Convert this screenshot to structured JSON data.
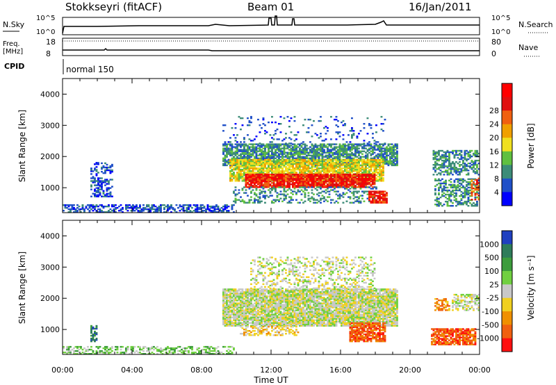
{
  "header": {
    "station": "Stokkseyri (fitACF)",
    "beam": "Beam 01",
    "date": "16/Jan/2011"
  },
  "noise_panel": {
    "left_label": "N.Sky",
    "right_label": "N.Search",
    "left_ticks": [
      "10^5",
      "10^0"
    ],
    "right_ticks": [
      "10^5",
      "10^0"
    ]
  },
  "freq_panel": {
    "left_label_1": "Freq.",
    "left_label_2": "[MHz]",
    "right_label": "Nave",
    "left_ticks": [
      "18",
      "8"
    ],
    "right_ticks": [
      "80",
      "0"
    ]
  },
  "cpid": {
    "label": "CPID",
    "mode": "normal 150"
  },
  "chart_data": [
    {
      "type": "heatmap",
      "name": "power",
      "ylabel": "Slant Range [km]",
      "ylim": [
        200,
        4500
      ],
      "y_ticks": [
        "1000",
        "2000",
        "3000",
        "4000"
      ],
      "xlim": [
        0,
        24
      ],
      "colorbar": {
        "label": "Power [dB]",
        "ticks": [
          "4",
          "8",
          "12",
          "16",
          "20",
          "24",
          "28"
        ],
        "colors": [
          "#0000ff",
          "#2050c8",
          "#3c8c78",
          "#60c040",
          "#f0e020",
          "#f0a000",
          "#f06010",
          "#e01010",
          "#ff0000"
        ]
      },
      "regions": [
        {
          "t0": 0.0,
          "t1": 9.8,
          "r0": 200,
          "r1": 450,
          "level": 1,
          "density": 0.55
        },
        {
          "t0": 1.6,
          "t1": 2.1,
          "r0": 700,
          "r1": 1800,
          "level": 1,
          "density": 0.4
        },
        {
          "t0": 2.2,
          "t1": 2.9,
          "r0": 1450,
          "r1": 1800,
          "level": 1,
          "density": 0.5
        },
        {
          "t0": 1.8,
          "t1": 2.9,
          "r0": 700,
          "r1": 1300,
          "level": 1,
          "density": 0.5
        },
        {
          "t0": 9.2,
          "t1": 18.6,
          "r0": 2400,
          "r1": 3300,
          "level": 1,
          "density": 0.1
        },
        {
          "t0": 9.2,
          "t1": 19.3,
          "r0": 1700,
          "r1": 2400,
          "level": 2,
          "density": 0.75
        },
        {
          "t0": 9.6,
          "t1": 18.5,
          "r0": 1200,
          "r1": 1900,
          "level": 4,
          "density": 0.85
        },
        {
          "t0": 10.5,
          "t1": 18.0,
          "r0": 1000,
          "r1": 1450,
          "level": 7,
          "density": 0.9
        },
        {
          "t0": 9.8,
          "t1": 18.3,
          "r0": 500,
          "r1": 1000,
          "level": 2,
          "density": 0.3
        },
        {
          "t0": 17.6,
          "t1": 18.7,
          "r0": 500,
          "r1": 900,
          "level": 7,
          "density": 0.8
        },
        {
          "t0": 21.3,
          "t1": 24.0,
          "r0": 1400,
          "r1": 2200,
          "level": 2,
          "density": 0.55
        },
        {
          "t0": 21.4,
          "t1": 24.0,
          "r0": 400,
          "r1": 1300,
          "level": 2,
          "density": 0.5
        },
        {
          "t0": 23.5,
          "t1": 24.0,
          "r0": 600,
          "r1": 1300,
          "level": 6,
          "density": 0.5
        }
      ]
    },
    {
      "type": "heatmap",
      "name": "velocity",
      "ylabel": "Slant Range [km]",
      "xlabel": "Time UT",
      "ylim": [
        200,
        4500
      ],
      "y_ticks": [
        "1000",
        "2000",
        "3000",
        "4000"
      ],
      "x_ticks": [
        "00:00",
        "04:00",
        "08:00",
        "12:00",
        "16:00",
        "20:00",
        "00:00"
      ],
      "xlim": [
        0,
        24
      ],
      "colorbar": {
        "label": "Velocity [m s⁻¹]",
        "ticks": [
          "1000",
          "500",
          "100",
          "25",
          "-25",
          "-100",
          "-500",
          "-1000"
        ],
        "colors": [
          "#2040c0",
          "#2e7c5a",
          "#3c9c3c",
          "#70d040",
          "#c8c8c8",
          "#f0d020",
          "#f09000",
          "#f06010",
          "#ff1010"
        ]
      },
      "regions": [
        {
          "t0": 0.0,
          "t1": 9.8,
          "r0": 200,
          "r1": 450,
          "level": 3,
          "density": 0.45
        },
        {
          "t0": 1.6,
          "t1": 2.0,
          "r0": 600,
          "r1": 1100,
          "level": 1,
          "density": 0.6
        },
        {
          "t0": 9.2,
          "t1": 19.3,
          "r0": 1100,
          "r1": 2300,
          "level": 4,
          "density": 0.9
        },
        {
          "t0": 10.8,
          "t1": 18.0,
          "r0": 2300,
          "r1": 3300,
          "level": 4,
          "density": 0.3
        },
        {
          "t0": 10.2,
          "t1": 13.5,
          "r0": 800,
          "r1": 1100,
          "level": 5,
          "density": 0.5
        },
        {
          "t0": 16.5,
          "t1": 18.6,
          "r0": 600,
          "r1": 1200,
          "level": 7,
          "density": 0.8
        },
        {
          "t0": 21.2,
          "t1": 23.8,
          "r0": 500,
          "r1": 1000,
          "level": 7,
          "density": 0.8
        },
        {
          "t0": 21.4,
          "t1": 22.3,
          "r0": 1600,
          "r1": 2000,
          "level": 6,
          "density": 0.6
        },
        {
          "t0": 22.4,
          "t1": 24.0,
          "r0": 1600,
          "r1": 2100,
          "level": 4,
          "density": 0.5
        }
      ]
    }
  ]
}
